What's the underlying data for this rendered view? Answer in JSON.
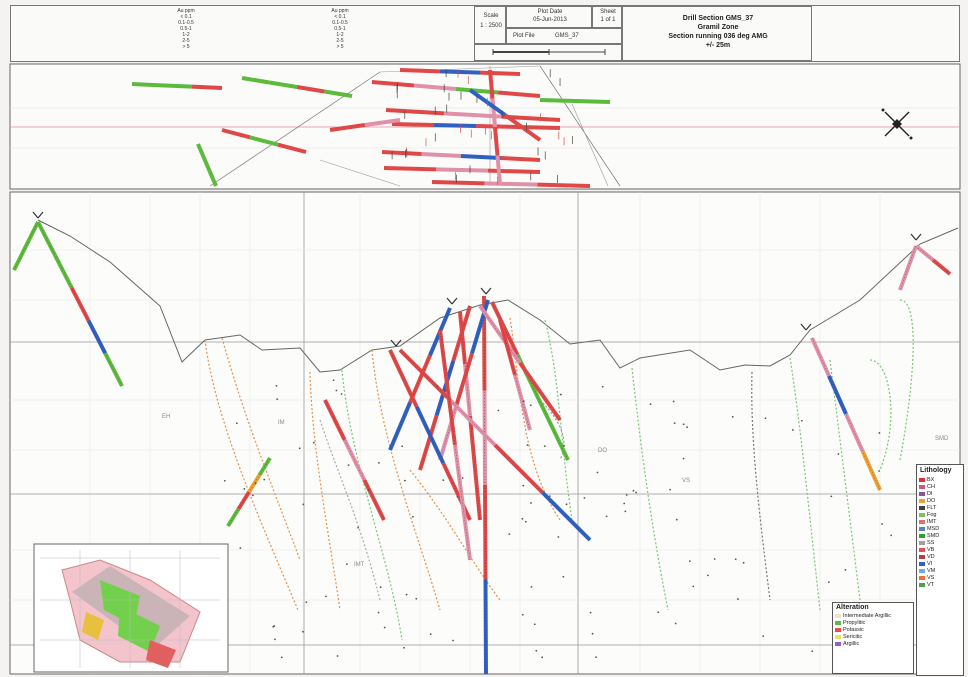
{
  "title_block": {
    "lines": [
      "Drill Section GMS_37",
      "Gramil Zone",
      "Section running 036 deg AMG",
      "+/- 25m"
    ],
    "scale_label": "Scale",
    "scale_value": "1 : 2500",
    "plot_date_label": "Plot Date",
    "plot_date_value": "05-Jun-2013",
    "sheet_label": "Sheet",
    "sheet_value": "1 of 1",
    "plot_file_label": "Plot File",
    "plot_file_value": "GMS_37"
  },
  "header_tables": {
    "left": [
      "Au ppm",
      "< 0.1",
      "0.1-0.5",
      "0.5-1",
      "1-2",
      "2-5",
      "> 5"
    ],
    "right": [
      "Au ppm",
      "< 0.1",
      "0.1-0.5",
      "0.5-1",
      "1-2",
      "2-5",
      "> 5"
    ]
  },
  "legends": {
    "lithology": {
      "title": "Lithology",
      "items": [
        {
          "label": "BX",
          "color": "#e03030"
        },
        {
          "label": "CH",
          "color": "#c06080"
        },
        {
          "label": "DI",
          "color": "#9050a0"
        },
        {
          "label": "DO",
          "color": "#f0a030"
        },
        {
          "label": "FLT",
          "color": "#404040"
        },
        {
          "label": "Fog",
          "color": "#80c060"
        },
        {
          "label": "IMT",
          "color": "#e07070"
        },
        {
          "label": "MSD",
          "color": "#6080c0"
        },
        {
          "label": "SMD",
          "color": "#30a030"
        },
        {
          "label": "SS",
          "color": "#a0a0a0"
        },
        {
          "label": "VB",
          "color": "#e05050"
        },
        {
          "label": "VD",
          "color": "#b04040"
        },
        {
          "label": "VI",
          "color": "#3060c0"
        },
        {
          "label": "VM",
          "color": "#60b0e0"
        },
        {
          "label": "VS",
          "color": "#f07030"
        },
        {
          "label": "VT",
          "color": "#50a050"
        }
      ]
    },
    "alteration": {
      "title": "Alteration",
      "items": [
        {
          "label": "Intermediate Argillic",
          "color": "#f4e2c8"
        },
        {
          "label": "Propylitic",
          "color": "#5cba3c"
        },
        {
          "label": "Potassic",
          "color": "#e94c4c"
        },
        {
          "label": "Sericitic",
          "color": "#ece060"
        },
        {
          "label": "Argillic",
          "color": "#9a5cc6"
        }
      ]
    }
  },
  "unit_labels": [
    "EH",
    "IM",
    "DO",
    "VS",
    "IMT",
    "SMD"
  ],
  "colors": {
    "paper": "#f4f3f1",
    "grid": "#cfcfcf",
    "topography": "#555555",
    "drill_green": "#5cba3c",
    "drill_red": "#e04848",
    "drill_blue": "#3060c0",
    "drill_pink": "#e090a8",
    "contact_orange": "#e89048",
    "contact_green": "#78c870"
  },
  "icons": [
    "north-arrow-icon",
    "section-scale-bar-icon"
  ]
}
